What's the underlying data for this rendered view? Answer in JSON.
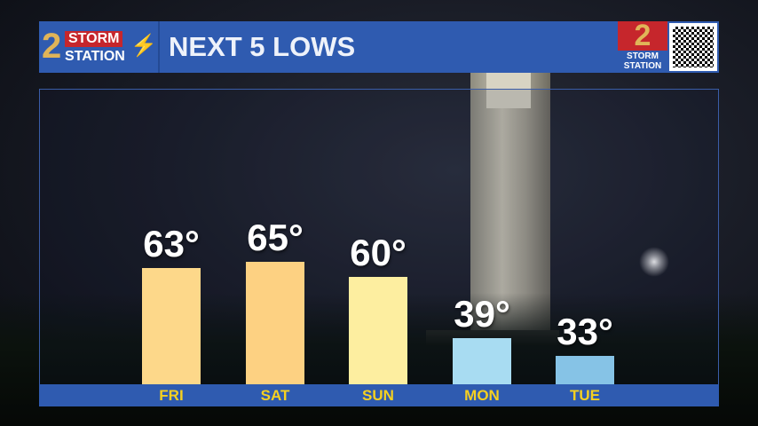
{
  "header": {
    "logo_text": "2 STORM STATION",
    "title": "NEXT 5 LOWS",
    "brand_logo_text": "2 STORM STATION",
    "qr_code": "qr-code-icon"
  },
  "chart_data": {
    "type": "bar",
    "title": "NEXT 5 LOWS",
    "categories": [
      "FRI",
      "SAT",
      "SUN",
      "MON",
      "TUE"
    ],
    "values": [
      63,
      65,
      60,
      39,
      33
    ],
    "labels": [
      "63°",
      "65°",
      "60°",
      "39°",
      "33°"
    ],
    "colors": [
      "#fdd88a",
      "#fdd182",
      "#fdeea0",
      "#a8dcf2",
      "#86c3e6"
    ],
    "label_color": "#f5d020",
    "band_color": "#2f5bb0"
  }
}
